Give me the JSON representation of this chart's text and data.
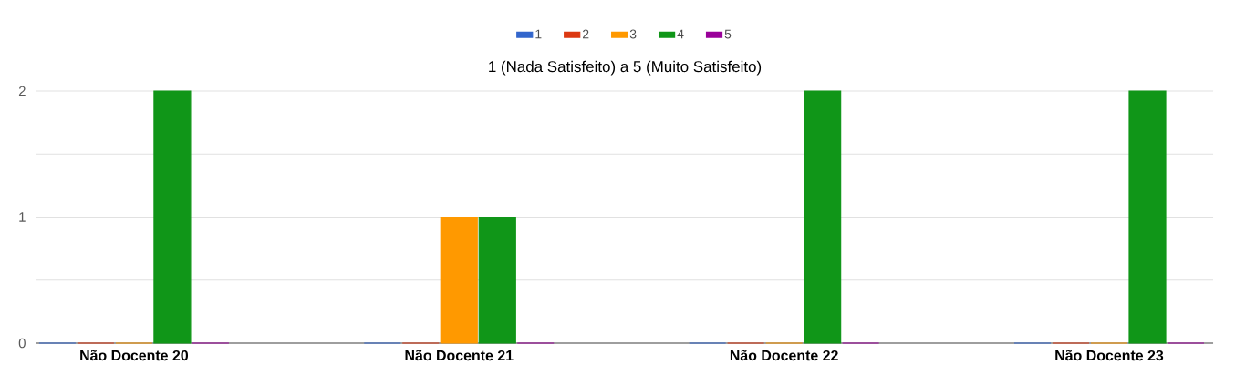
{
  "chart_data": {
    "type": "bar",
    "title": "1 (Nada Satisfeito) a 5 (Muito Satisfeito)",
    "categories": [
      "Não Docente 20",
      "Não Docente 21",
      "Não Docente 22",
      "Não Docente 23"
    ],
    "series": [
      {
        "name": "1",
        "color": "#3366cc",
        "values": [
          0,
          0,
          0,
          0
        ]
      },
      {
        "name": "2",
        "color": "#dc3912",
        "values": [
          0,
          0,
          0,
          0
        ]
      },
      {
        "name": "3",
        "color": "#ff9900",
        "values": [
          0,
          1,
          0,
          0
        ]
      },
      {
        "name": "4",
        "color": "#109618",
        "values": [
          2,
          1,
          2,
          2
        ]
      },
      {
        "name": "5",
        "color": "#990099",
        "values": [
          0,
          0,
          0,
          0
        ]
      }
    ],
    "ylim": [
      0,
      2
    ],
    "yticks": [
      0,
      {
        "value": 0.5,
        "label": null
      },
      1,
      {
        "value": 1.5,
        "label": null
      },
      2
    ],
    "grid": "y",
    "legend": "top"
  }
}
